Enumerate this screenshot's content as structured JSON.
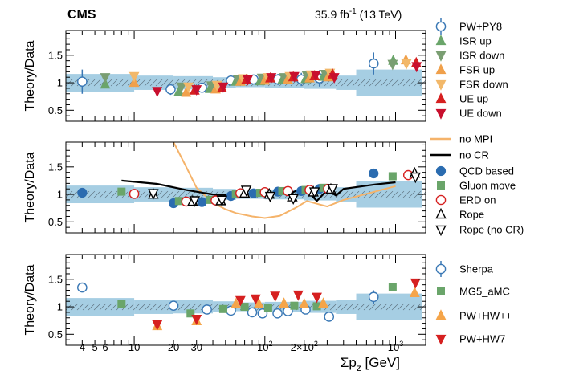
{
  "header": {
    "experiment": "CMS",
    "lumi_value": "35.9 fb",
    "lumi_sup": "-1",
    "lumi_energy": " (13 TeV)"
  },
  "colors": {
    "band": "#a6cee3",
    "pw_py8": "#3a78b5",
    "isr_up": "#6aa56a",
    "isr_down": "#7a9e72",
    "fsr_up": "#f0a04b",
    "fsr_down": "#f2b86a",
    "ue_up": "#d62020",
    "ue_down": "#c8102e",
    "no_mpi": "#f5b36a",
    "no_cr": "#000000",
    "qcd_based": "#2b6cb0",
    "gluon_move": "#6aa56a",
    "erd_on": "#d62020",
    "rope": "#000000",
    "sherpa": "#3a78b5",
    "mg5": "#6aa56a",
    "pw_hwpp": "#f5a54a",
    "pw_hw7": "#d62020"
  },
  "axis": {
    "xlabel_main": "Σp",
    "xlabel_sub": "z",
    "xlabel_unit": " [GeV]",
    "xtick_labels": [
      {
        "x": 4,
        "label": "4"
      },
      {
        "x": 5,
        "label": "5"
      },
      {
        "x": 6,
        "label": "6"
      },
      {
        "x": 10,
        "label": "10"
      },
      {
        "x": 20,
        "label": "20"
      },
      {
        "x": 30,
        "label": "30"
      }
    ],
    "xtick_pow": [
      {
        "x": 100,
        "mant": "10",
        "exp": "2"
      },
      {
        "x": 200,
        "mant": "2×10",
        "exp": "2"
      },
      {
        "x": 1000,
        "mant": "10",
        "exp": "3"
      }
    ],
    "ytick_labels": [
      "0.5",
      "1",
      "1.5"
    ]
  },
  "chart_data": [
    {
      "type": "scatter",
      "panel": "top",
      "ylabel": "Theory/Data",
      "xlim": [
        3,
        1700
      ],
      "ylim": [
        0.3,
        1.95
      ],
      "xscale": "log",
      "grid": false,
      "legend": "right",
      "band_x": [
        3,
        10,
        20,
        40,
        60,
        100,
        200,
        350,
        500,
        1600
      ],
      "band_half": [
        0.16,
        0.13,
        0.12,
        0.1,
        0.08,
        0.09,
        0.11,
        0.13,
        0.24
      ],
      "series": [
        {
          "name": "PW+PY8",
          "marker": "circle-open",
          "colorKey": "pw_py8",
          "x": [
            4,
            19,
            33,
            55,
            82,
            126,
            190,
            262,
            680
          ],
          "y": [
            1.02,
            0.88,
            0.91,
            1.04,
            1.06,
            1.06,
            1.06,
            1.08,
            1.35
          ],
          "err": [
            0.22,
            0.1,
            0.08,
            0.07,
            0.08,
            0.1,
            0.12,
            0.15,
            0.2
          ]
        },
        {
          "name": "ISR up",
          "marker": "tri-up",
          "colorKey": "isr_up",
          "x": [
            6,
            22,
            38,
            60,
            92,
            136,
            205,
            280,
            960
          ],
          "y": [
            0.97,
            0.84,
            0.89,
            1.02,
            1.03,
            1.05,
            1.07,
            1.11,
            1.4
          ]
        },
        {
          "name": "ISR down",
          "marker": "tri-down",
          "colorKey": "isr_down",
          "x": [
            6,
            23,
            39,
            62,
            95,
            140,
            210,
            290,
            950
          ],
          "y": [
            1.1,
            0.93,
            0.95,
            1.07,
            1.09,
            1.1,
            1.13,
            1.16,
            1.34
          ]
        },
        {
          "name": "FSR up",
          "marker": "tri-up",
          "colorKey": "fsr_up",
          "x": [
            10,
            25,
            42,
            65,
            100,
            150,
            220,
            305,
            1200
          ],
          "y": [
            1.0,
            0.82,
            0.88,
            1.02,
            1.04,
            1.06,
            1.08,
            1.1,
            1.41
          ]
        },
        {
          "name": "FSR down",
          "marker": "tri-down",
          "colorKey": "fsr_down",
          "x": [
            10,
            26,
            43,
            68,
            105,
            155,
            225,
            315,
            1210
          ],
          "y": [
            1.12,
            0.93,
            0.96,
            1.08,
            1.1,
            1.12,
            1.15,
            1.18,
            1.35
          ]
        },
        {
          "name": "UE up",
          "marker": "tri-up",
          "colorKey": "ue_up",
          "x": [
            29,
            47,
            72,
            110,
            165,
            240,
            330,
            1440
          ],
          "y": [
            0.86,
            0.9,
            1.05,
            1.08,
            1.1,
            1.12,
            1.15,
            1.36
          ]
        },
        {
          "name": "UE down",
          "marker": "tri-down",
          "colorKey": "ue_down",
          "x": [
            15,
            30,
            48,
            74,
            112,
            168,
            245,
            340,
            1450
          ],
          "y": [
            0.85,
            0.88,
            0.93,
            1.06,
            1.1,
            1.12,
            1.14,
            1.1,
            1.3
          ]
        }
      ]
    },
    {
      "type": "scatter",
      "panel": "middle",
      "ylabel": "Theory/Data",
      "xlim": [
        3,
        1700
      ],
      "ylim": [
        0.3,
        1.95
      ],
      "xscale": "log",
      "grid": false,
      "legend": "right",
      "band_x": [
        3,
        10,
        20,
        40,
        60,
        100,
        200,
        350,
        500,
        1600
      ],
      "band_half": [
        0.16,
        0.13,
        0.12,
        0.1,
        0.08,
        0.09,
        0.11,
        0.13,
        0.24
      ],
      "series": [
        {
          "name": "no MPI",
          "marker": "line",
          "colorKey": "no_mpi",
          "x": [
            20,
            25,
            30,
            40,
            50,
            60,
            80,
            100,
            130,
            170,
            210,
            250,
            300,
            400,
            1000
          ],
          "y": [
            1.95,
            1.5,
            1.12,
            0.85,
            0.73,
            0.66,
            0.6,
            0.57,
            0.61,
            0.75,
            0.88,
            0.83,
            0.78,
            0.9,
            1.15
          ]
        },
        {
          "name": "no CR",
          "marker": "line",
          "colorKey": "no_cr",
          "x": [
            8,
            15,
            25,
            40,
            60,
            80,
            100,
            150,
            200,
            250,
            300,
            350,
            400,
            700,
            1000
          ],
          "y": [
            1.25,
            1.19,
            1.08,
            1.0,
            0.98,
            1.02,
            1.05,
            1.0,
            1.13,
            0.88,
            1.08,
            0.98,
            1.1,
            1.18,
            1.22
          ]
        },
        {
          "name": "QCD based",
          "marker": "circle-filled",
          "colorKey": "qcd_based",
          "x": [
            4,
            20,
            33,
            55,
            82,
            126,
            190,
            262,
            680
          ],
          "y": [
            1.03,
            0.84,
            0.86,
            0.97,
            1.02,
            1.05,
            1.06,
            1.1,
            1.38
          ]
        },
        {
          "name": "Gluon move",
          "marker": "square",
          "colorKey": "gluon_move",
          "x": [
            8,
            22,
            38,
            60,
            92,
            136,
            205,
            280,
            950
          ],
          "y": [
            1.05,
            0.88,
            0.9,
            1.0,
            1.03,
            1.06,
            1.08,
            1.12,
            1.33
          ]
        },
        {
          "name": "ERD on",
          "marker": "circle-open",
          "colorKey": "erd_on",
          "x": [
            10,
            25,
            42,
            65,
            100,
            150,
            220,
            305,
            1250
          ],
          "y": [
            1.01,
            0.87,
            0.89,
            1.02,
            1.04,
            1.06,
            1.08,
            1.1,
            1.35
          ]
        },
        {
          "name": "Rope",
          "marker": "tri-up-open",
          "colorKey": "rope",
          "x": [
            14,
            28,
            46,
            70,
            108,
            162,
            235,
            320,
            1400
          ],
          "y": [
            1.0,
            0.87,
            0.88,
            1.02,
            1.0,
            0.95,
            1.04,
            1.09,
            1.38
          ]
        },
        {
          "name": "Rope (no CR)",
          "marker": "tri-down-open",
          "colorKey": "rope",
          "x": [
            14,
            29,
            47,
            72,
            110,
            165,
            240,
            330,
            1420
          ],
          "y": [
            1.02,
            0.89,
            0.9,
            1.08,
            0.97,
            0.93,
            1.05,
            1.11,
            1.32
          ]
        }
      ]
    },
    {
      "type": "scatter",
      "panel": "bottom",
      "ylabel": "Theory/Data",
      "xlim": [
        3,
        1700
      ],
      "ylim": [
        0.3,
        1.95
      ],
      "xscale": "log",
      "grid": false,
      "legend": "right",
      "band_x": [
        3,
        10,
        20,
        40,
        60,
        100,
        200,
        350,
        500,
        1600
      ],
      "band_half": [
        0.16,
        0.13,
        0.12,
        0.1,
        0.08,
        0.09,
        0.11,
        0.13,
        0.24
      ],
      "series": [
        {
          "name": "Sherpa",
          "marker": "circle-open",
          "colorKey": "sherpa",
          "x": [
            4,
            20,
            36,
            55,
            80,
            96,
            125,
            150,
            205,
            310,
            680
          ],
          "y": [
            1.35,
            1.02,
            0.95,
            0.93,
            0.9,
            0.88,
            0.88,
            0.92,
            0.95,
            0.82,
            1.18
          ],
          "err": [
            0.03,
            0.03,
            0.03,
            0.03,
            0.03,
            0.03,
            0.03,
            0.04,
            0.05,
            0.07,
            0.12
          ]
        },
        {
          "name": "MG5_aMC",
          "marker": "square",
          "colorKey": "mg5",
          "x": [
            8,
            27,
            48,
            70,
            106,
            168,
            250,
            950
          ],
          "y": [
            1.05,
            0.88,
            0.96,
            1.0,
            0.98,
            1.02,
            1.01,
            1.36
          ]
        },
        {
          "name": "PW+HW++",
          "marker": "tri-up",
          "colorKey": "pw_hwpp",
          "x": [
            15,
            30,
            60,
            90,
            140,
            200,
            280,
            1400
          ],
          "y": [
            0.65,
            0.74,
            1.05,
            1.05,
            1.06,
            1.05,
            1.06,
            1.25
          ]
        },
        {
          "name": "PW+HW7",
          "marker": "tri-down",
          "colorKey": "pw_hw7",
          "x": [
            15,
            30,
            65,
            85,
            120,
            180,
            250,
            1420
          ],
          "y": [
            0.68,
            0.78,
            1.12,
            1.15,
            1.2,
            1.22,
            1.18,
            1.44
          ]
        }
      ]
    }
  ]
}
